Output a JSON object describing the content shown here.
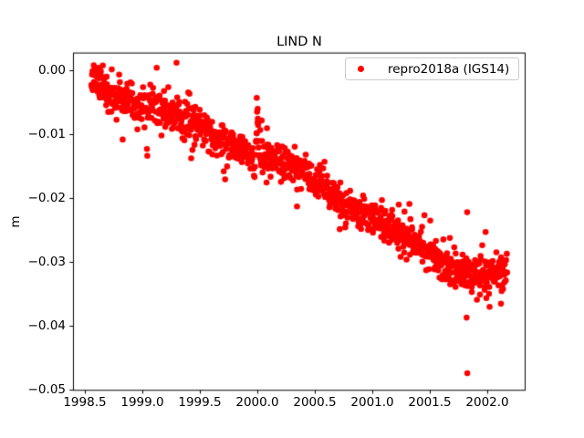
{
  "chart_data": {
    "type": "scatter",
    "title": "LIND N",
    "xlabel": "",
    "ylabel": "m",
    "xlim": [
      1998.397,
      2002.333
    ],
    "ylim": [
      -0.05,
      0.0028
    ],
    "grid": false,
    "x_ticks": [
      1998.5,
      1999.0,
      1999.5,
      2000.0,
      2000.5,
      2001.0,
      2001.5,
      2002.0
    ],
    "x_tick_labels": [
      "1998.5",
      "1999.0",
      "1999.5",
      "2000.0",
      "2000.5",
      "2001.0",
      "2001.5",
      "2002.0"
    ],
    "y_ticks": [
      0.0,
      -0.01,
      -0.02,
      -0.03,
      -0.04,
      -0.05
    ],
    "y_tick_labels": [
      "0.00",
      "−0.01",
      "−0.02",
      "−0.03",
      "−0.04",
      "−0.05"
    ],
    "legend": {
      "position": "upper right",
      "entries": [
        {
          "label": "repro2018a (IGS14)",
          "marker": "dot",
          "color": "#ff0000"
        }
      ]
    },
    "series": [
      {
        "name": "repro2018a (IGS14)",
        "color": "#ff0000",
        "marker": "circle",
        "marker_radius_px": 3.3,
        "x_start": 1998.558,
        "x_end": 2002.175,
        "n_points": 1280,
        "gap_probability": 0.05,
        "seed": 1337,
        "trend_anchors": [
          [
            1998.558,
            -0.0014
          ],
          [
            1999.0,
            -0.0051
          ],
          [
            1999.5,
            -0.0094
          ],
          [
            2000.0,
            -0.0129
          ],
          [
            2000.5,
            -0.0177
          ],
          [
            2001.0,
            -0.0226
          ],
          [
            2001.45,
            -0.0288
          ],
          [
            2001.7,
            -0.0305
          ],
          [
            2002.175,
            -0.0315
          ]
        ],
        "seasonal_amplitude": 0.0007,
        "seasonal_phase": 0.12,
        "noise_sd": 0.00135,
        "wide_noise_fraction": 0.07,
        "wide_noise_factor": 2.1,
        "spike": {
          "center": 2000.0,
          "sigma": 0.011,
          "amplitude": 0.0068
        },
        "outliers": [
          [
            1999.04,
            -0.0123
          ],
          [
            1999.995,
            -0.0043
          ],
          [
            2000.003,
            -0.006
          ],
          [
            2001.23,
            -0.021
          ],
          [
            2001.28,
            -0.0221
          ],
          [
            2001.825,
            -0.0222
          ],
          [
            2001.865,
            -0.0347
          ],
          [
            2001.91,
            -0.0359
          ],
          [
            2002.02,
            -0.037
          ],
          [
            2001.82,
            -0.0387
          ],
          [
            2001.826,
            -0.0474
          ],
          [
            2001.985,
            -0.0253
          ]
        ]
      }
    ],
    "axis_color": "#000000",
    "background_color": "#ffffff"
  }
}
